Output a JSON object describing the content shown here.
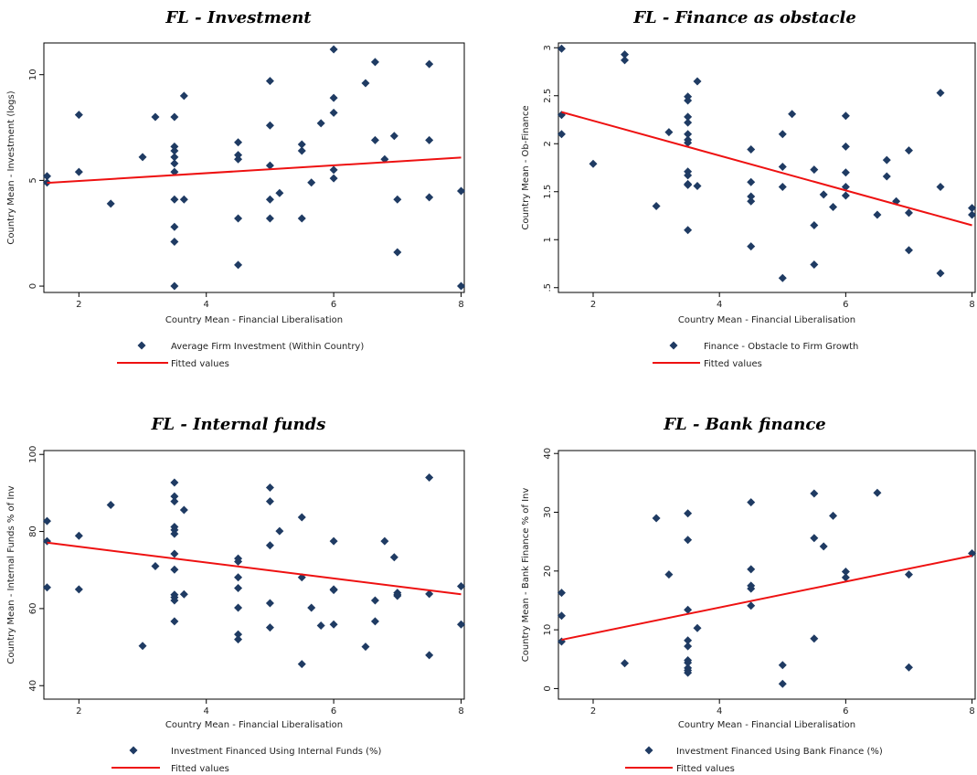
{
  "chart_data": [
    {
      "type": "scatter",
      "title": "FL - Investment",
      "xlabel": "Country Mean - Financial Liberalisation",
      "ylabel": "Country Mean - Investment (logs)",
      "xlim": [
        1.45,
        8.05
      ],
      "ylim": [
        -0.3,
        11.5
      ],
      "xticks": [
        2,
        4,
        6,
        8
      ],
      "yticks": [
        0,
        5,
        10
      ],
      "series": [
        {
          "name": "Average Firm Investment (Within Country)",
          "marker": "diamond",
          "color": "#1f3b63",
          "x": [
            1.5,
            1.5,
            2,
            2,
            2.5,
            3,
            3.2,
            3.5,
            3.5,
            3.5,
            3.5,
            3.5,
            3.5,
            3.5,
            3.5,
            3.5,
            3.5,
            3.65,
            3.65,
            4.5,
            4.5,
            4.5,
            4.5,
            4.5,
            5,
            5,
            5,
            5,
            5,
            5.15,
            5.5,
            5.5,
            5.5,
            5.65,
            5.8,
            6,
            6,
            6,
            6,
            6,
            6.5,
            6.65,
            6.65,
            6.8,
            6.95,
            7,
            7,
            7.5,
            7.5,
            7.5,
            8,
            8
          ],
          "y": [
            5.2,
            4.9,
            8.1,
            5.4,
            3.9,
            6.1,
            8.0,
            8.0,
            6.6,
            6.4,
            6.1,
            5.8,
            5.4,
            4.1,
            2.8,
            2.1,
            0.0,
            9.0,
            4.1,
            6.8,
            6.2,
            6.0,
            3.2,
            1.0,
            9.7,
            7.6,
            5.7,
            4.1,
            3.2,
            4.4,
            6.7,
            6.4,
            3.2,
            4.9,
            7.7,
            11.2,
            8.9,
            8.2,
            5.5,
            5.1,
            9.6,
            10.6,
            6.9,
            6.0,
            7.1,
            4.1,
            1.6,
            10.5,
            6.9,
            4.2,
            4.5,
            0.0
          ]
        },
        {
          "name": "Fitted values",
          "type": "line",
          "color": "#ee1111",
          "x": [
            1.5,
            8
          ],
          "y": [
            4.88,
            6.08
          ]
        }
      ]
    },
    {
      "type": "scatter",
      "title": "FL - Finance as obstacle",
      "xlabel": "Country Mean - Financial Liberalisation",
      "ylabel": "Country Mean - Ob-Finance",
      "xlim": [
        1.45,
        8.05
      ],
      "ylim": [
        0.45,
        3.05
      ],
      "xticks": [
        2,
        4,
        6,
        8
      ],
      "yticks": [
        0.5,
        1,
        1.5,
        2,
        2.5,
        3
      ],
      "ytick_labels": [
        ".5",
        "1",
        "1.5",
        "2",
        "2.5",
        "3"
      ],
      "series": [
        {
          "name": "Finance - Obstacle to Firm Growth",
          "marker": "diamond",
          "color": "#1f3b63",
          "x": [
            1.5,
            1.5,
            1.5,
            2,
            2.5,
            2.5,
            3,
            3.2,
            3.5,
            3.5,
            3.5,
            3.5,
            3.5,
            3.5,
            3.5,
            3.5,
            3.5,
            3.5,
            3.5,
            3.5,
            3.65,
            3.65,
            4.5,
            4.5,
            4.5,
            4.5,
            4.5,
            5,
            5,
            5,
            5,
            5.15,
            5.5,
            5.5,
            5.5,
            5.65,
            5.8,
            6,
            6,
            6,
            6,
            6,
            6.5,
            6.65,
            6.65,
            6.8,
            7,
            7,
            7,
            7.5,
            7.5,
            7.5,
            8,
            8
          ],
          "y": [
            2.99,
            2.3,
            2.1,
            1.79,
            2.93,
            2.87,
            1.35,
            2.12,
            2.49,
            2.45,
            2.28,
            2.22,
            2.1,
            2.04,
            2.01,
            1.71,
            1.67,
            1.58,
            1.57,
            1.1,
            2.65,
            1.56,
            1.94,
            1.6,
            1.45,
            1.4,
            0.93,
            2.1,
            1.76,
            1.55,
            0.6,
            2.31,
            1.73,
            1.15,
            0.74,
            1.47,
            1.34,
            2.29,
            1.97,
            1.7,
            1.55,
            1.46,
            1.26,
            1.83,
            1.66,
            1.4,
            1.93,
            1.28,
            0.89,
            2.53,
            1.55,
            0.65,
            1.33,
            1.26
          ]
        },
        {
          "name": "Fitted values",
          "type": "line",
          "color": "#ee1111",
          "x": [
            1.5,
            8
          ],
          "y": [
            2.33,
            1.15
          ]
        }
      ]
    },
    {
      "type": "scatter",
      "title": "FL - Internal funds",
      "xlabel": "Country Mean - Financial Liberalisation",
      "ylabel": "Country Mean - Internal Funds % of Inv",
      "xlim": [
        1.45,
        8.05
      ],
      "ylim": [
        36.5,
        101
      ],
      "xticks": [
        2,
        4,
        6,
        8
      ],
      "yticks": [
        40,
        60,
        80,
        100
      ],
      "series": [
        {
          "name": "Investment Financed Using Internal Funds (%)",
          "marker": "diamond",
          "color": "#1f3b63",
          "x": [
            1.5,
            1.5,
            1.5,
            2,
            2,
            2.5,
            3,
            3.2,
            3.5,
            3.5,
            3.5,
            3.5,
            3.5,
            3.5,
            3.5,
            3.5,
            3.5,
            3.5,
            3.5,
            3.5,
            3.65,
            3.65,
            4.5,
            4.5,
            4.5,
            4.5,
            4.5,
            4.5,
            4.5,
            5,
            5,
            5,
            5,
            5,
            5.15,
            5.5,
            5.5,
            5.5,
            5.65,
            5.8,
            6,
            6,
            6,
            6,
            6.5,
            6.65,
            6.65,
            6.8,
            6.95,
            7,
            7,
            7,
            7.5,
            7.5,
            7.5,
            8,
            8
          ],
          "y": [
            82.7,
            77.5,
            65.5,
            78.9,
            65.0,
            86.9,
            50.3,
            71.0,
            92.7,
            89.1,
            87.8,
            81.2,
            80.4,
            79.4,
            74.2,
            70.1,
            63.6,
            62.1,
            56.7,
            62.9,
            85.6,
            63.7,
            73.0,
            72.2,
            68.1,
            65.3,
            60.2,
            53.3,
            52.0,
            91.4,
            87.8,
            76.4,
            61.4,
            55.1,
            80.1,
            83.7,
            68.1,
            45.6,
            60.2,
            55.6,
            77.5,
            65.0,
            64.8,
            55.9,
            50.1,
            62.1,
            56.7,
            77.5,
            73.3,
            64.1,
            63.6,
            63.3,
            94.0,
            63.8,
            47.9,
            65.8,
            55.9
          ]
        },
        {
          "name": "Fitted values",
          "type": "line",
          "color": "#ee1111",
          "x": [
            1.5,
            8
          ],
          "y": [
            77.1,
            63.7
          ]
        }
      ]
    },
    {
      "type": "scatter",
      "title": "FL - Bank finance",
      "xlabel": "Country Mean - Financial Liberalisation",
      "ylabel": "Country Mean - Bank Finance % of Inv",
      "xlim": [
        1.45,
        8.05
      ],
      "ylim": [
        -1.8,
        40.5
      ],
      "xticks": [
        2,
        4,
        6,
        8
      ],
      "yticks": [
        0,
        10,
        20,
        30,
        40
      ],
      "series": [
        {
          "name": "Investment Financed Using Bank Finance (%)",
          "marker": "diamond",
          "color": "#1f3b63",
          "x": [
            1.5,
            1.5,
            1.5,
            2.5,
            3,
            3.2,
            3.5,
            3.5,
            3.5,
            3.5,
            3.5,
            3.5,
            3.5,
            3.5,
            3.5,
            3.5,
            3.65,
            4.5,
            4.5,
            4.5,
            4.5,
            4.5,
            5,
            5,
            5.5,
            5.5,
            5.5,
            5.65,
            5.8,
            6,
            6,
            6.5,
            7,
            7,
            8
          ],
          "y": [
            16.3,
            12.4,
            8.0,
            4.3,
            29.0,
            19.4,
            29.8,
            25.3,
            13.4,
            8.2,
            7.2,
            4.8,
            4.4,
            3.5,
            3.1,
            2.7,
            10.3,
            31.7,
            20.3,
            17.5,
            17.0,
            14.1,
            4.0,
            0.8,
            33.2,
            25.6,
            8.5,
            24.2,
            29.4,
            19.9,
            18.9,
            33.3,
            19.4,
            3.6,
            23.0
          ]
        },
        {
          "name": "Fitted values",
          "type": "line",
          "color": "#ee1111",
          "x": [
            1.5,
            8
          ],
          "y": [
            8.3,
            22.6
          ]
        }
      ]
    }
  ]
}
